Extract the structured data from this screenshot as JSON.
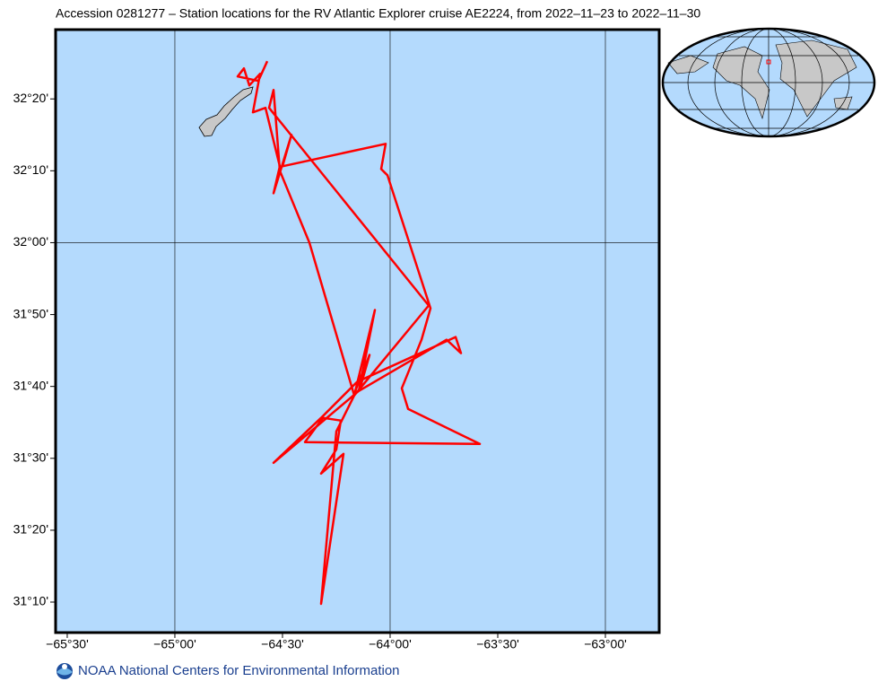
{
  "chart_data": {
    "type": "map",
    "title": "Accession 0281277 – Station locations for the RV Atlantic Explorer cruise AE2224, from 2022–11–23 to 2022–11–30",
    "footer": "NOAA National Centers for Environmental Information",
    "xlim": [
      -65.554,
      -62.75
    ],
    "ylim": [
      31.096,
      32.494
    ],
    "xticks": [
      {
        "value": -65.5,
        "label": "−65°30'"
      },
      {
        "value": -65.0,
        "label": "−65°00'"
      },
      {
        "value": -64.5,
        "label": "−64°30'"
      },
      {
        "value": -64.0,
        "label": "−64°00'"
      },
      {
        "value": -63.5,
        "label": "−63°30'"
      },
      {
        "value": -63.0,
        "label": "−63°00'"
      }
    ],
    "yticks": [
      {
        "value": 32.3333,
        "label": "32°20'"
      },
      {
        "value": 32.1667,
        "label": "32°10'"
      },
      {
        "value": 32.0,
        "label": "32°00'"
      },
      {
        "value": 31.8333,
        "label": "31°50'"
      },
      {
        "value": 31.6667,
        "label": "31°40'"
      },
      {
        "value": 31.5,
        "label": "31°30'"
      },
      {
        "value": 31.3333,
        "label": "31°20'"
      },
      {
        "value": 31.1667,
        "label": "31°10'"
      }
    ],
    "grid": true,
    "track": {
      "color": "#ff0000",
      "lon": [
        -64.5708,
        -64.6125,
        -64.7083,
        -64.6792,
        -64.6542,
        -64.6042,
        -64.6375,
        -64.5792,
        -64.5125,
        -64.5417,
        -64.4583,
        -64.5,
        -64.0208,
        -64.0417,
        -64.0125,
        -63.8125,
        -63.8542,
        -63.9458,
        -63.9167,
        -63.5833,
        -64.3958,
        -64.3125,
        -64.2292,
        -64.25,
        -64.3208,
        -64.2167,
        -64.3208,
        -64.25,
        -64.1667,
        -64.375,
        -64.5125,
        -64.5417,
        -64.5625,
        -63.8208,
        -64.1667,
        -64.0708,
        -64.1458,
        -64.5417,
        -64.3208,
        -64.1542,
        -63.6958,
        -63.6708,
        -63.7375,
        -64.1667,
        -64.0958,
        -64.1375
      ],
      "lat": [
        32.4208,
        32.375,
        32.3854,
        32.4042,
        32.3646,
        32.3917,
        32.3021,
        32.3125,
        32.1771,
        32.1146,
        32.25,
        32.1771,
        32.2292,
        32.1708,
        32.1563,
        31.8479,
        31.775,
        31.6625,
        31.6146,
        31.5333,
        31.5375,
        31.5938,
        31.5875,
        31.5208,
        31.4646,
        31.5104,
        31.1625,
        31.5625,
        31.6458,
        32.0,
        32.1667,
        32.3542,
        32.3125,
        31.8542,
        31.6458,
        31.8438,
        31.6563,
        31.4896,
        31.5938,
        31.6771,
        31.7813,
        31.7438,
        31.775,
        31.65,
        31.7396,
        31.6667
      ]
    }
  }
}
